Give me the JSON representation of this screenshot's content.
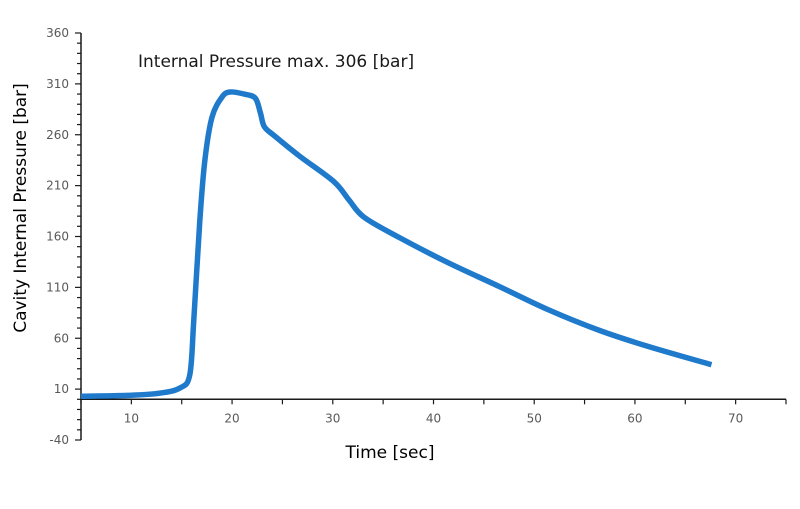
{
  "chart_data": {
    "type": "line",
    "title": "",
    "annotation": "Internal Pressure max. 306 [bar]",
    "xlabel": "Time [sec]",
    "ylabel": "Cavity Internal Pressure [bar]",
    "xlim": [
      5,
      75
    ],
    "ylim": [
      -40,
      360
    ],
    "x_ticks": [
      10,
      20,
      30,
      40,
      50,
      60,
      70
    ],
    "x_tick_labels": [
      "10",
      "20",
      "30",
      "40",
      "50",
      "60",
      "70"
    ],
    "y_ticks": [
      -40,
      10,
      60,
      110,
      160,
      210,
      260,
      310,
      360
    ],
    "y_tick_labels": [
      "-40",
      "10",
      "60",
      "110",
      "160",
      "210",
      "260",
      "310",
      "360"
    ],
    "x_minor_step": 5,
    "y_minor_step": 10,
    "grid": false,
    "legend": "none",
    "series": [
      {
        "name": "Cavity Internal Pressure",
        "color": "#1f7acb",
        "x": [
          5,
          10,
          12.8,
          14.8,
          15.8,
          16.2,
          16.8,
          17.3,
          18,
          19,
          19.8,
          21.2,
          22.3,
          22.8,
          23.2,
          24.2,
          26.7,
          30.1,
          31.6,
          33.1,
          36.6,
          41.5,
          46.5,
          51.4,
          56.4,
          61.3,
          67.6
        ],
        "y": [
          3,
          4,
          6,
          11,
          24,
          78,
          176,
          235,
          277,
          297,
          302,
          300,
          296,
          282,
          268,
          259,
          239,
          214,
          196,
          179,
          159,
          134,
          111,
          88,
          68,
          52,
          34
        ]
      }
    ]
  }
}
